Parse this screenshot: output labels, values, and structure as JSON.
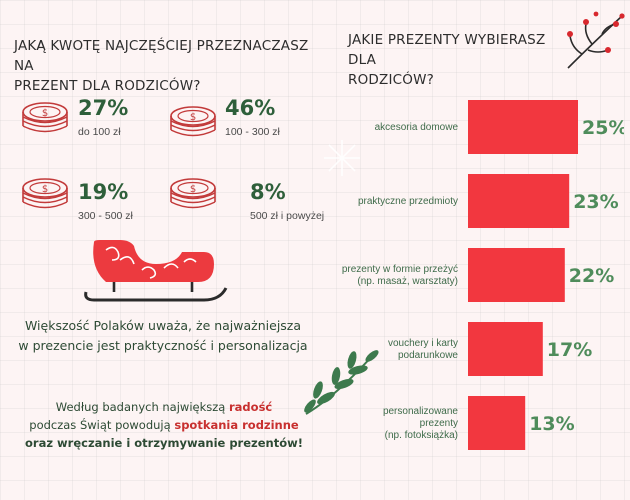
{
  "left": {
    "question_lines": [
      "JAKĄ KWOTĘ NAJCZĘŚCIEJ PRZEZNACZASZ NA",
      "PREZENT DLA RODZICÓW?"
    ],
    "amounts": [
      {
        "percent": "27%",
        "range": "do 100 zł",
        "icon": "coin-stack-icon"
      },
      {
        "percent": "46%",
        "range": "100 - 300 zł",
        "icon": "coin-stack-icon"
      },
      {
        "percent": "19%",
        "range": "300 - 500 zł",
        "icon": "coin-stack-icon"
      },
      {
        "percent": "8%",
        "range": "500 zł i powyżej",
        "icon": "coin-stack-icon"
      }
    ],
    "sleigh_icon": "sleigh-icon",
    "claim_lines": [
      "Większość Polaków uważa, że najważniejsza",
      "w prezencie jest praktyczność i personalizacja"
    ],
    "note": {
      "line1_a": "Według badanych największą ",
      "line1_b": "radość",
      "line2_a": "podczas Świąt powodują ",
      "line2_b": "spotkania rodzinne",
      "line3": "oraz wręczanie i otrzymywanie prezentów!"
    }
  },
  "right": {
    "question_lines": [
      "JAKIE PREZENTY WYBIERASZ DLA",
      "RODZICÓW?"
    ],
    "decor_icons": [
      "berry-branch-icon",
      "snowflake-icon",
      "mistletoe-branch-icon"
    ]
  },
  "colors": {
    "bar": "#f2373f",
    "value": "#4f8c5b",
    "percent": "#2e5f3a",
    "accent": "#c8302f"
  },
  "chart_data": {
    "type": "bar",
    "orientation": "horizontal",
    "title": "JAKIE PREZENTY WYBIERASZ DLA RODZICÓW?",
    "categories": [
      [
        "akcesoria domowe"
      ],
      [
        "praktyczne przedmioty"
      ],
      [
        "prezenty w formie przeżyć",
        "(np. masaż, warsztaty)"
      ],
      [
        "vouchery i karty",
        "podarunkowe"
      ],
      [
        "personalizowane",
        "prezenty",
        "(np. fotoksiążka)"
      ]
    ],
    "values": [
      25,
      23,
      22,
      17,
      13
    ],
    "value_labels": [
      "25%",
      "23%",
      "22%",
      "17%",
      "13%"
    ],
    "unit": "%",
    "grid": false,
    "legend": "none"
  }
}
